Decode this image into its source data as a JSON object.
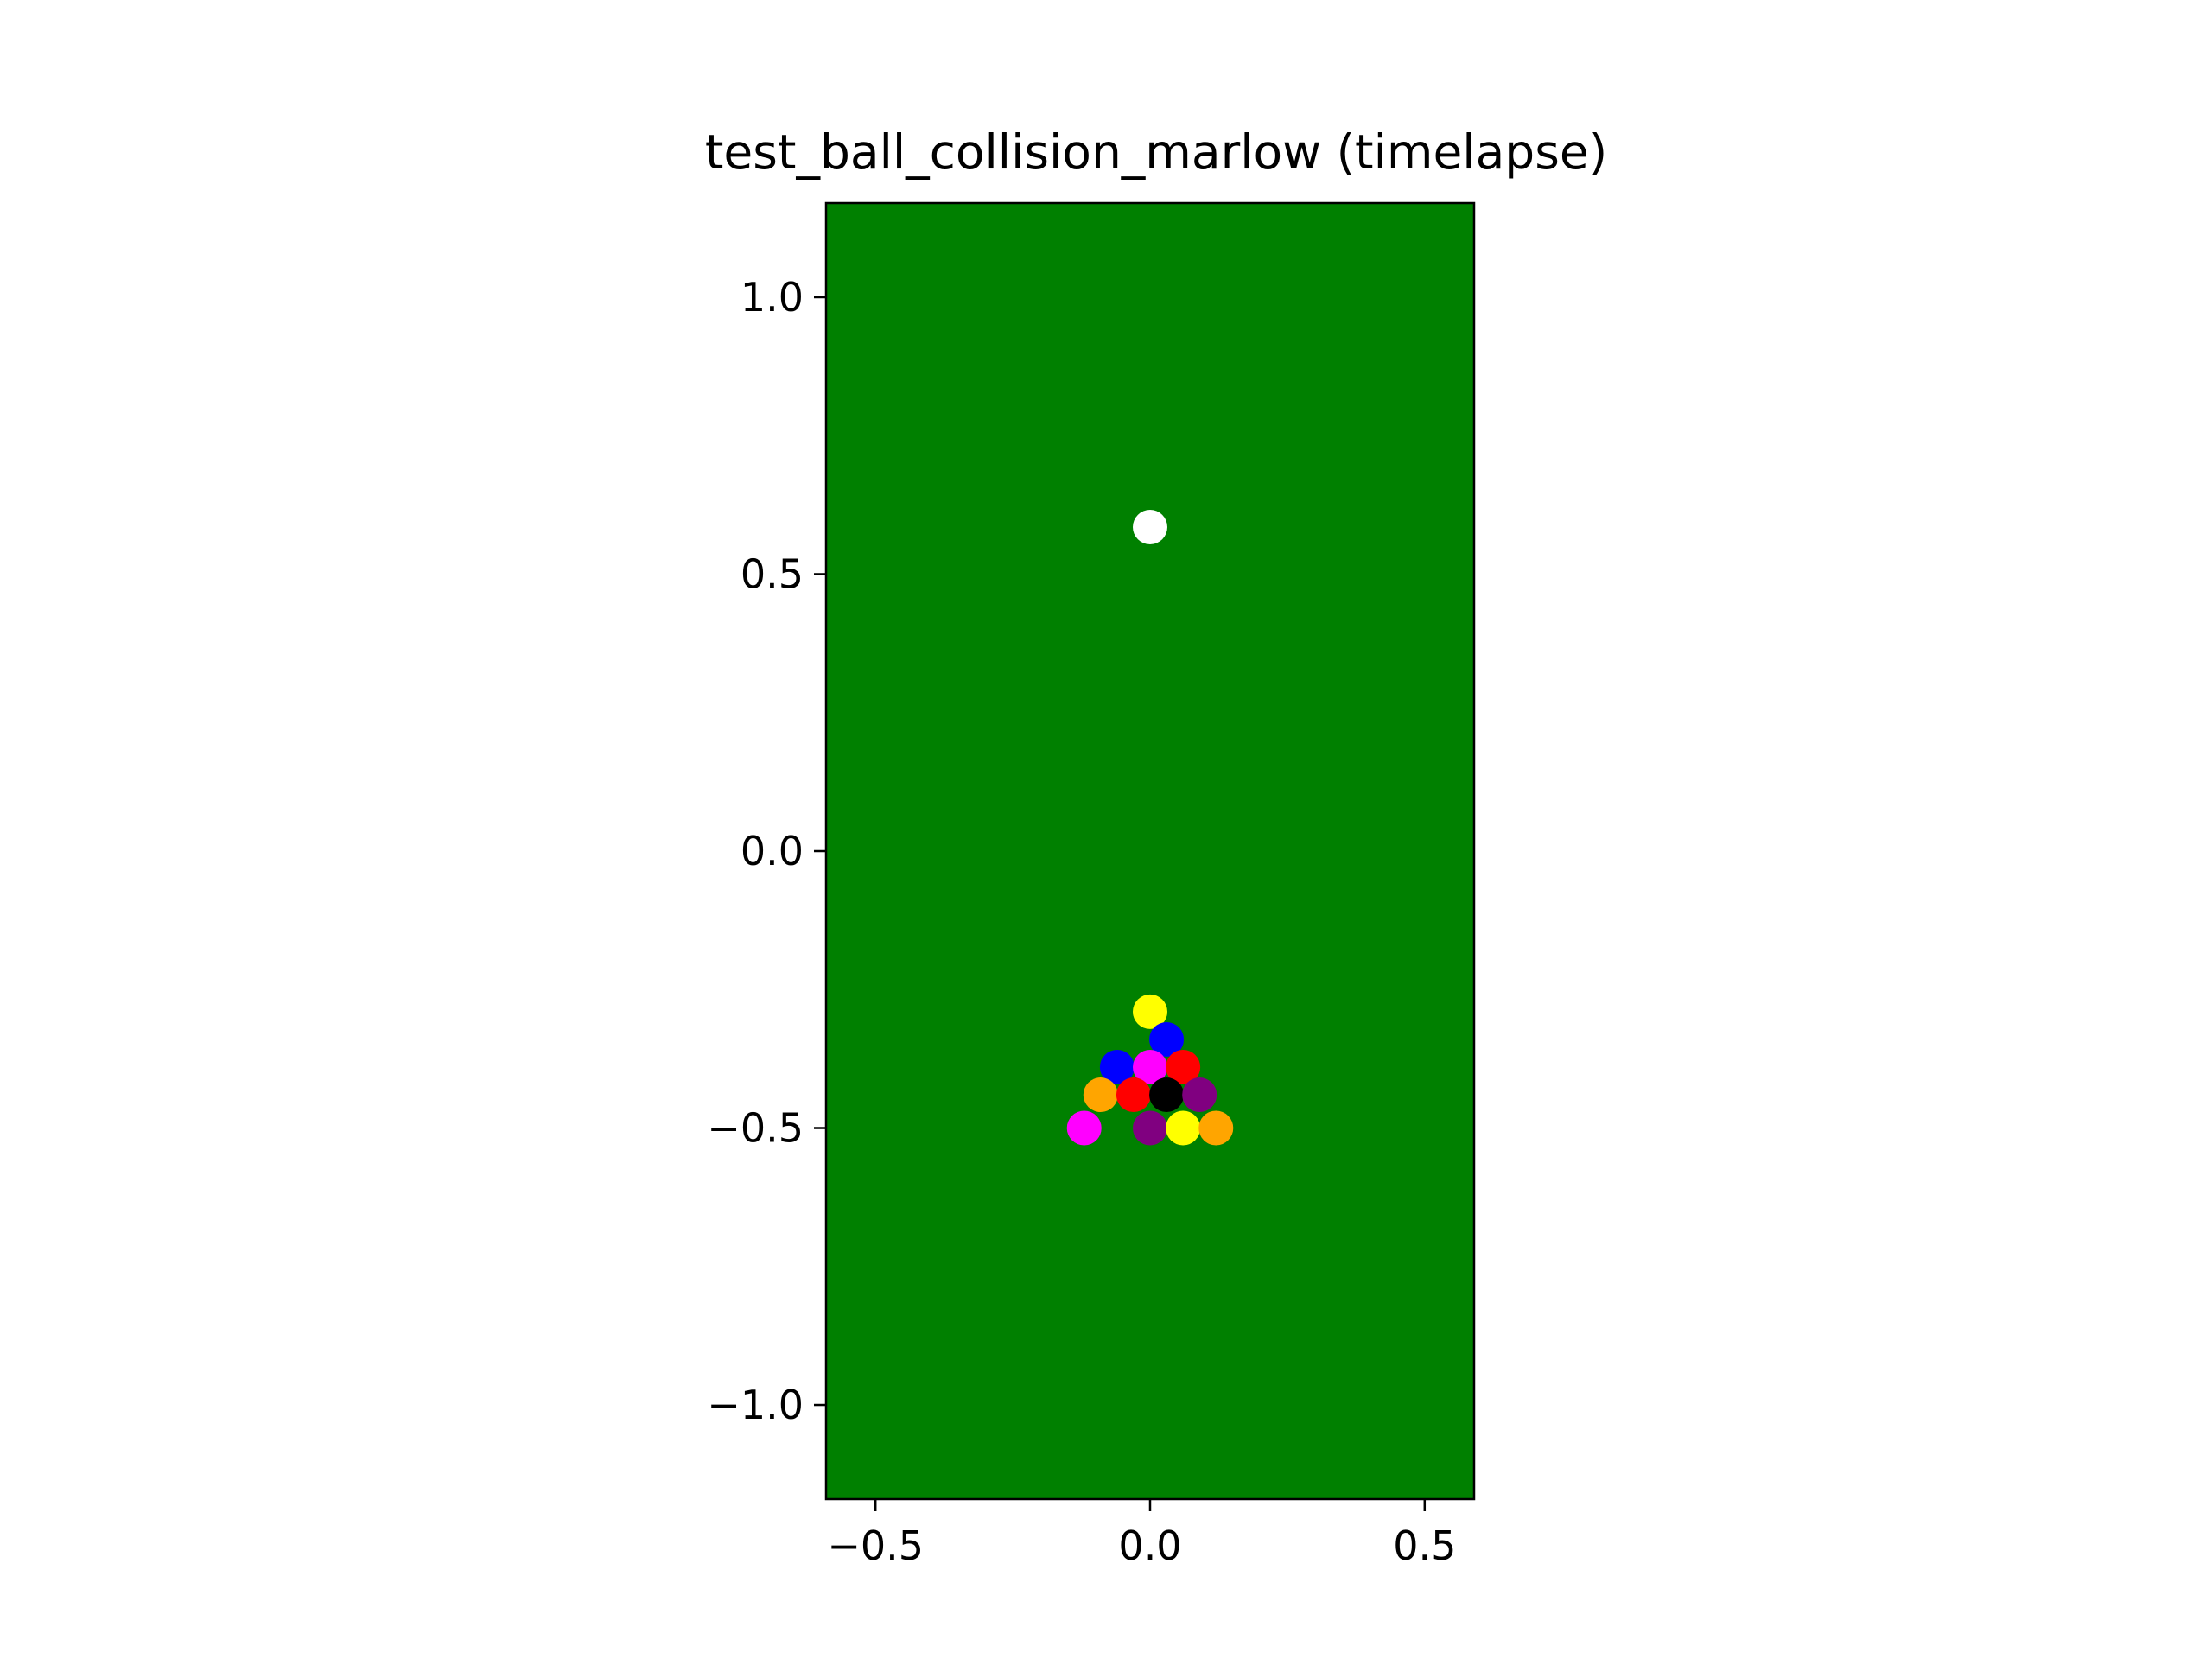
{
  "chart_data": {
    "type": "scatter",
    "title": "test_ball_collision_marlow (timelapse)",
    "xlabel": "",
    "ylabel": "",
    "xlim": [
      -0.59,
      0.59
    ],
    "ylim": [
      -1.17,
      1.17
    ],
    "aspect": "equal",
    "grid": false,
    "legend": "none",
    "background_color": "#008000",
    "xticks": [
      -0.5,
      0.0,
      0.5
    ],
    "xtick_labels": [
      "−0.5",
      "0.0",
      "0.5"
    ],
    "yticks": [
      1.0,
      0.5,
      0.0,
      -0.5,
      -1.0
    ],
    "ytick_labels": [
      "1.0",
      "0.5",
      "0.0",
      "−0.5",
      "−1.0"
    ],
    "points": [
      {
        "x": 0.0,
        "y": 0.585,
        "color": "#ffffff"
      },
      {
        "x": 0.0,
        "y": -0.29,
        "color": "#ffff00"
      },
      {
        "x": 0.03,
        "y": -0.34,
        "color": "#0000ff"
      },
      {
        "x": -0.06,
        "y": -0.39,
        "color": "#0000ff"
      },
      {
        "x": 0.0,
        "y": -0.39,
        "color": "#ff00ff"
      },
      {
        "x": 0.06,
        "y": -0.39,
        "color": "#ff0000"
      },
      {
        "x": -0.09,
        "y": -0.44,
        "color": "#ffa500"
      },
      {
        "x": -0.03,
        "y": -0.44,
        "color": "#ff0000"
      },
      {
        "x": 0.03,
        "y": -0.44,
        "color": "#000000"
      },
      {
        "x": 0.09,
        "y": -0.44,
        "color": "#800080"
      },
      {
        "x": -0.12,
        "y": -0.5,
        "color": "#ff00ff"
      },
      {
        "x": 0.0,
        "y": -0.5,
        "color": "#800080"
      },
      {
        "x": 0.06,
        "y": -0.5,
        "color": "#ffff00"
      },
      {
        "x": 0.12,
        "y": -0.5,
        "color": "#ffa500"
      }
    ]
  }
}
